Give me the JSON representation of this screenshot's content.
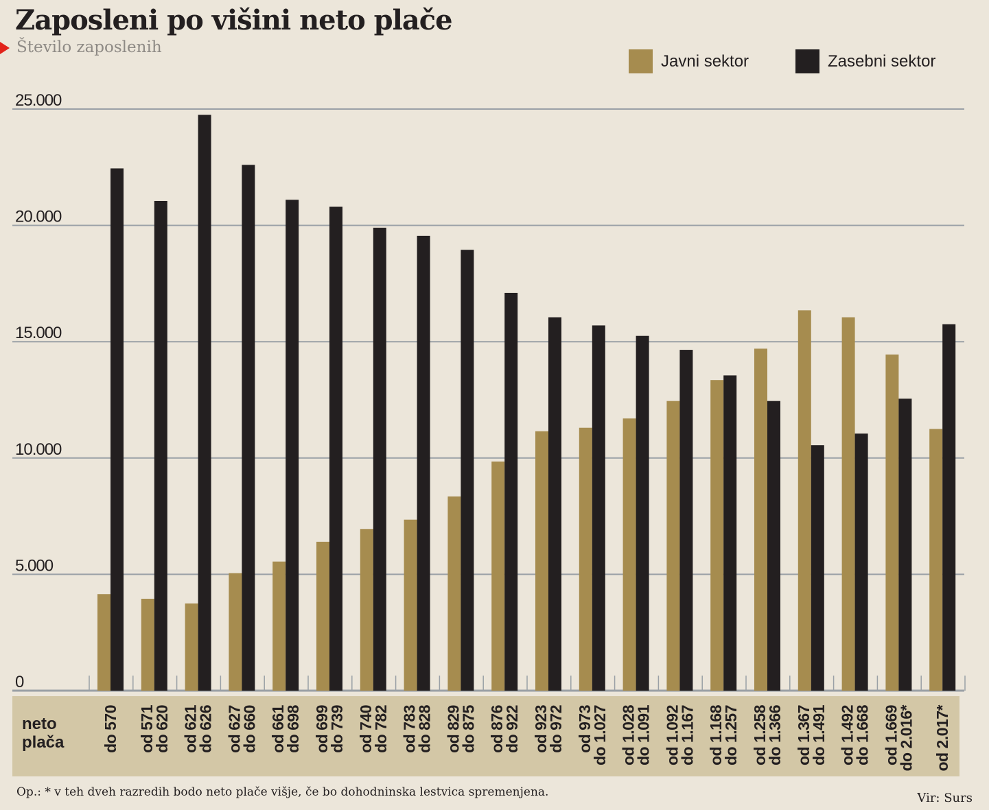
{
  "title": "Zaposleni po višini neto plače",
  "subtitle": "Število zaposlenih",
  "colors": {
    "javni": "#a68c4f",
    "zasebni": "#231f20",
    "grid": "#9aa0a6",
    "band": "#d3c7a6",
    "background": "#ece6da"
  },
  "chart_data": {
    "type": "bar",
    "ylabel": "Število zaposlenih",
    "xlabel": "neto plača",
    "xlabel_lines": [
      "neto",
      "plača"
    ],
    "ylim": [
      0,
      25000
    ],
    "yticks": [
      0,
      5000,
      10000,
      15000,
      20000,
      25000
    ],
    "ytick_labels": [
      "0",
      "5.000",
      "10.000",
      "15.000",
      "20.000",
      "25.000"
    ],
    "grid": true,
    "legend_position": "top-right",
    "categories": [
      [
        "do 570"
      ],
      [
        "od 571",
        "do 620"
      ],
      [
        "od 621",
        "do 626"
      ],
      [
        "od 627",
        "do 660"
      ],
      [
        "od 661",
        "do 698"
      ],
      [
        "od 699",
        "do 739"
      ],
      [
        "od 740",
        "do 782"
      ],
      [
        "od 783",
        "do 828"
      ],
      [
        "od 829",
        "do 875"
      ],
      [
        "od 876",
        "do 922"
      ],
      [
        "od 923",
        "do 972"
      ],
      [
        "od 973",
        "do 1.027"
      ],
      [
        "od 1.028",
        "do 1.091"
      ],
      [
        "od 1.092",
        "do 1.167"
      ],
      [
        "od 1.168",
        "do 1.257"
      ],
      [
        "od 1.258",
        "do 1.366"
      ],
      [
        "od 1.367",
        "do 1.491"
      ],
      [
        "od 1.492",
        "do 1.668"
      ],
      [
        "od 1.669",
        "do 2.016*"
      ],
      [
        "od 2.017*"
      ]
    ],
    "series": [
      {
        "name": "Javni sektor",
        "color": "#a68c4f",
        "values": [
          4150,
          3950,
          3750,
          5050,
          5550,
          6400,
          6950,
          7350,
          8350,
          9850,
          11150,
          11300,
          11700,
          12450,
          13350,
          14700,
          16350,
          16050,
          14450,
          11250
        ]
      },
      {
        "name": "Zasebni sektor",
        "color": "#231f20",
        "values": [
          22450,
          21050,
          24750,
          22600,
          21100,
          20800,
          19900,
          19550,
          18950,
          17100,
          16050,
          15700,
          15250,
          14650,
          13550,
          12450,
          10550,
          11050,
          12550,
          15750
        ]
      }
    ]
  },
  "footnote": "Op.: * v teh dveh razredih bodo neto plače višje, če bo dohodninska lestvica  spremenjena.",
  "source": "Vir: Surs"
}
